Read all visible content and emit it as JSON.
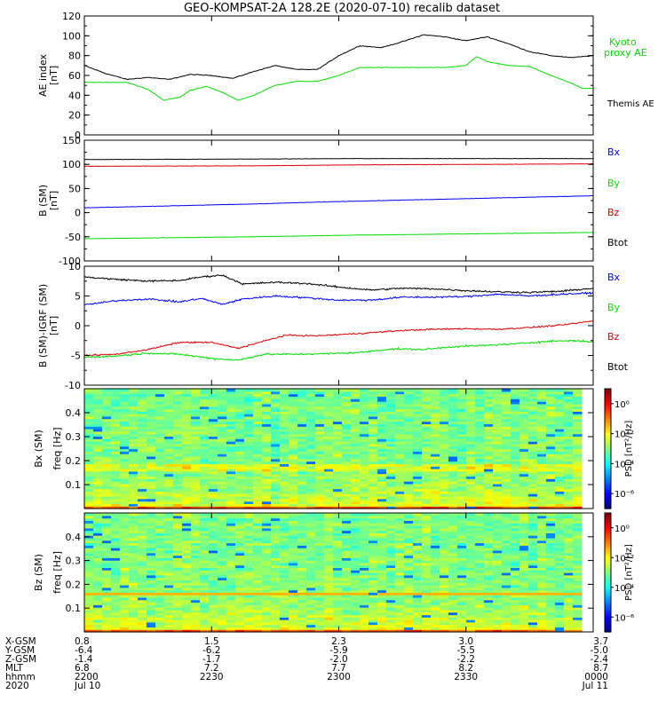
{
  "title": "GEO-KOMPSAT-2A 128.2E (2020-07-10) recalib dataset",
  "colors": {
    "black": "#000000",
    "green": "#00dd00",
    "blue": "#0000ff",
    "red": "#dd0000"
  },
  "chart_data": [
    {
      "type": "line",
      "panel": "ae_index",
      "ylabel": "AE index",
      "yunit": "[nT]",
      "ylim": [
        0,
        120
      ],
      "yticks": [
        0,
        20,
        40,
        60,
        80,
        100,
        120
      ],
      "xlim": [
        0,
        4800
      ],
      "x_unit": "seconds after 2020-07-10 22:00 UT",
      "series": [
        {
          "name": "Themis AE",
          "color": "#000000",
          "x": [
            0,
            200,
            400,
            600,
            800,
            1000,
            1200,
            1400,
            1600,
            1800,
            2000,
            2200,
            2400,
            2600,
            2800,
            3000,
            3200,
            3400,
            3600,
            3800,
            4000,
            4200,
            4400,
            4600,
            4800
          ],
          "values": [
            70,
            62,
            56,
            58,
            56,
            61,
            60,
            57,
            64,
            70,
            66,
            66,
            80,
            90,
            88,
            94,
            101,
            99,
            95,
            99,
            92,
            84,
            80,
            78,
            80
          ]
        },
        {
          "name": "Kyoto proxy AE",
          "color": "#00dd00",
          "x": [
            0,
            200,
            400,
            600,
            750,
            900,
            1000,
            1150,
            1300,
            1450,
            1600,
            1800,
            2000,
            2200,
            2400,
            2600,
            2800,
            3000,
            3200,
            3400,
            3600,
            3700,
            3800,
            4000,
            4200,
            4400,
            4600,
            4700,
            4800
          ],
          "values": [
            53,
            53,
            53,
            46,
            35,
            38,
            45,
            49,
            43,
            35,
            40,
            50,
            54,
            54,
            60,
            68,
            68,
            68,
            68,
            68,
            70,
            79,
            74,
            70,
            69,
            60,
            52,
            47,
            47
          ]
        }
      ]
    },
    {
      "type": "line",
      "panel": "b_sm",
      "ylabel": "B (SM)",
      "yunit": "[nT]",
      "ylim": [
        -100,
        150
      ],
      "yticks": [
        -100,
        -50,
        0,
        50,
        100,
        150
      ],
      "xlim": [
        0,
        4800
      ],
      "legend": [
        "Bx",
        "By",
        "Bz",
        "Btot"
      ],
      "series": [
        {
          "name": "Btot",
          "color": "#000000",
          "x": [
            0,
            1600,
            2600,
            4800
          ],
          "values": [
            110,
            111,
            112,
            112
          ]
        },
        {
          "name": "Bz",
          "color": "#dd0000",
          "x": [
            0,
            1600,
            2600,
            4800
          ],
          "values": [
            96,
            97,
            99,
            101
          ]
        },
        {
          "name": "Bx",
          "color": "#0000ff",
          "x": [
            0,
            800,
            1600,
            2400,
            3200,
            4000,
            4800
          ],
          "values": [
            10,
            14,
            18,
            23,
            27,
            31,
            35
          ]
        },
        {
          "name": "By",
          "color": "#00dd00",
          "x": [
            0,
            800,
            1600,
            2400,
            3200,
            4000,
            4800
          ],
          "values": [
            -54,
            -52,
            -50,
            -47,
            -45,
            -43,
            -41
          ]
        }
      ]
    },
    {
      "type": "line",
      "panel": "b_minus_igrf",
      "ylabel": "B (SM)-IGRF (SM)",
      "yunit": "[nT]",
      "ylim": [
        -10,
        10
      ],
      "yticks": [
        -10,
        -5,
        0,
        5,
        10
      ],
      "xlim": [
        0,
        4800
      ],
      "legend": [
        "Bx",
        "By",
        "Bz",
        "Btot"
      ],
      "series": [
        {
          "name": "Btot",
          "color": "#000000",
          "x": [
            0,
            300,
            600,
            900,
            1100,
            1300,
            1500,
            1800,
            2100,
            2400,
            2700,
            3000,
            3300,
            3600,
            3900,
            4200,
            4500,
            4800
          ],
          "values": [
            8.2,
            7.8,
            7.5,
            7.6,
            8.2,
            8.5,
            7.0,
            7.3,
            7.1,
            6.5,
            6.0,
            6.3,
            6.2,
            5.9,
            5.7,
            5.6,
            5.8,
            6.3
          ]
        },
        {
          "name": "Bx",
          "color": "#0000ff",
          "x": [
            0,
            300,
            600,
            900,
            1100,
            1300,
            1500,
            1800,
            2100,
            2400,
            2700,
            3000,
            3300,
            3600,
            3900,
            4200,
            4500,
            4800
          ],
          "values": [
            3.5,
            4.2,
            4.5,
            4.0,
            4.6,
            3.6,
            4.5,
            5.0,
            4.7,
            4.3,
            4.3,
            4.8,
            4.8,
            4.9,
            5.3,
            5.0,
            5.3,
            5.5
          ]
        },
        {
          "name": "Bz",
          "color": "#dd0000",
          "x": [
            0,
            300,
            600,
            900,
            1200,
            1450,
            1650,
            1900,
            2200,
            2600,
            3000,
            3300,
            3600,
            3900,
            4200,
            4500,
            4800
          ],
          "values": [
            -5.0,
            -4.8,
            -4.0,
            -2.8,
            -2.8,
            -3.8,
            -2.8,
            -1.6,
            -1.7,
            -1.3,
            -0.8,
            -0.6,
            -0.5,
            -0.6,
            -0.3,
            0.1,
            0.8
          ]
        },
        {
          "name": "By",
          "color": "#00dd00",
          "x": [
            0,
            300,
            600,
            900,
            1200,
            1450,
            1700,
            2000,
            2300,
            2600,
            2900,
            3200,
            3500,
            3800,
            4100,
            4400,
            4600,
            4800
          ],
          "values": [
            -5.3,
            -5.1,
            -4.6,
            -4.8,
            -5.5,
            -5.8,
            -4.8,
            -4.8,
            -4.7,
            -4.5,
            -3.9,
            -4.0,
            -3.5,
            -3.3,
            -3.0,
            -2.6,
            -2.5,
            -2.7
          ]
        }
      ]
    },
    {
      "type": "heatmap",
      "panel": "bx_spectrogram",
      "ylabel_1": "Bx (SM)",
      "ylabel_2": "freq [Hz]",
      "ylim": [
        0,
        0.5
      ],
      "yticks": [
        0.1,
        0.2,
        0.3,
        0.4
      ],
      "xlim": [
        0,
        4800
      ],
      "colorbar_label": "PSD [nT²/Hz]",
      "colorbar_ticks": [
        "10⁰",
        "10⁻²",
        "10⁻⁴",
        "10⁻⁶"
      ],
      "colorbar_range_log10": [
        -7,
        1
      ]
    },
    {
      "type": "heatmap",
      "panel": "bz_spectrogram",
      "ylabel_1": "Bz (SM)",
      "ylabel_2": "freq [Hz]",
      "ylim": [
        0,
        0.5
      ],
      "yticks": [
        0.1,
        0.2,
        0.3,
        0.4
      ],
      "xlim": [
        0,
        4800
      ],
      "colorbar_label": "PSD [nT²/Hz]",
      "colorbar_ticks": [
        "10⁰",
        "10⁻²",
        "10⁻⁴",
        "10⁻⁶"
      ],
      "colorbar_range_log10": [
        -7,
        1
      ]
    }
  ],
  "legends": {
    "ae": [
      "Kyoto",
      "proxy AE",
      "Themis AE"
    ],
    "b": [
      "Bx",
      "By",
      "Bz",
      "Btot"
    ]
  },
  "xaxis": {
    "row_labels": [
      "X-GSM",
      "Y-GSM",
      "Z-GSM",
      "MLT",
      "hhmm",
      "2020"
    ],
    "ticks": [
      {
        "t": 0,
        "vals": [
          "0.8",
          "-6.4",
          "-1.4",
          "6.8",
          "2200",
          "Jul 10"
        ]
      },
      {
        "t": 1200,
        "vals": [
          "1.5",
          "-6.2",
          "-1.7",
          "7.2",
          "2230",
          ""
        ]
      },
      {
        "t": 2400,
        "vals": [
          "2.3",
          "-5.9",
          "-2.0",
          "7.7",
          "2300",
          ""
        ]
      },
      {
        "t": 3600,
        "vals": [
          "3.0",
          "-5.5",
          "-2.2",
          "8.2",
          "2330",
          ""
        ]
      },
      {
        "t": 4800,
        "vals": [
          "3.7",
          "-5.0",
          "-2.4",
          "8.7",
          "0000",
          "Jul 11"
        ]
      }
    ]
  }
}
